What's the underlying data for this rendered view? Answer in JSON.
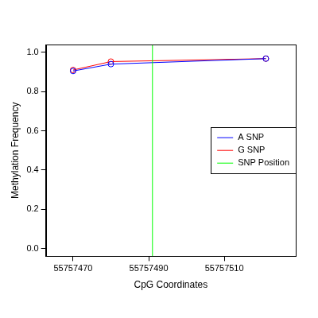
{
  "chart_data": {
    "type": "line",
    "x_label": "CpG Coordinates",
    "y_label": "Methylation Frequency",
    "x": [
      55757470,
      55757480,
      55757521
    ],
    "series": [
      {
        "name": "A SNP",
        "color": "#0000ff",
        "values": [
          0.905,
          0.94,
          0.968
        ],
        "marker": "open_circle"
      },
      {
        "name": "G SNP",
        "color": "#ff0000",
        "values": [
          0.91,
          0.953,
          0.968
        ],
        "marker": "open_circle"
      },
      {
        "name": "SNP Position",
        "color": "#00ff00",
        "type": "vline",
        "x": [
          55757491
        ]
      }
    ],
    "xlim": [
      55757462.8,
      55757528.9
    ],
    "xticks": [
      55757470,
      55757490,
      55757510
    ],
    "ylim": [
      -0.04,
      1.04
    ],
    "yticks": [
      {
        "value": 0,
        "label": "0.0"
      },
      0.2,
      0.4,
      0.6,
      0.8,
      {
        "value": 1,
        "label": "1.0"
      }
    ],
    "grid": false,
    "legend": "right"
  }
}
